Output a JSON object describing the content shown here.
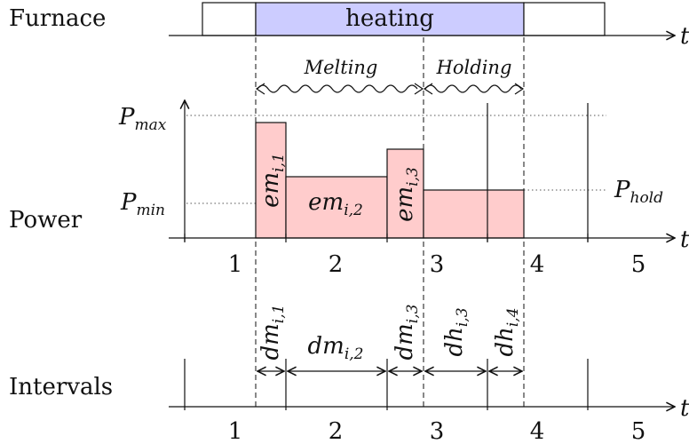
{
  "labels": {
    "furnace": "Furnace",
    "power": "Power",
    "intervals": "Intervals",
    "t": "t",
    "heating": "heating",
    "melting": "Melting",
    "holding": "Holding"
  },
  "power_levels": {
    "pmax": {
      "base": "P",
      "sub": "max"
    },
    "pmin": {
      "base": "P",
      "sub": "min"
    },
    "phold": {
      "base": "P",
      "sub": "hold"
    }
  },
  "segments": [
    {
      "base": "em",
      "sub": "i,1"
    },
    {
      "base": "em",
      "sub": "i,2"
    },
    {
      "base": "em",
      "sub": "i,3"
    }
  ],
  "durations": [
    {
      "base": "dm",
      "sub": "i,1"
    },
    {
      "base": "dm",
      "sub": "i,2"
    },
    {
      "base": "dm",
      "sub": "i,3"
    },
    {
      "base": "dh",
      "sub": "i,3"
    },
    {
      "base": "dh",
      "sub": "i,4"
    }
  ],
  "slot_numbers_power": [
    "1",
    "2",
    "3",
    "4",
    "5"
  ],
  "slot_numbers_intervals": [
    "1",
    "2",
    "3",
    "4",
    "5"
  ],
  "colors": {
    "heating_fill": "#ccccff",
    "power_fill": "#ffcccc",
    "line": "#111111"
  }
}
